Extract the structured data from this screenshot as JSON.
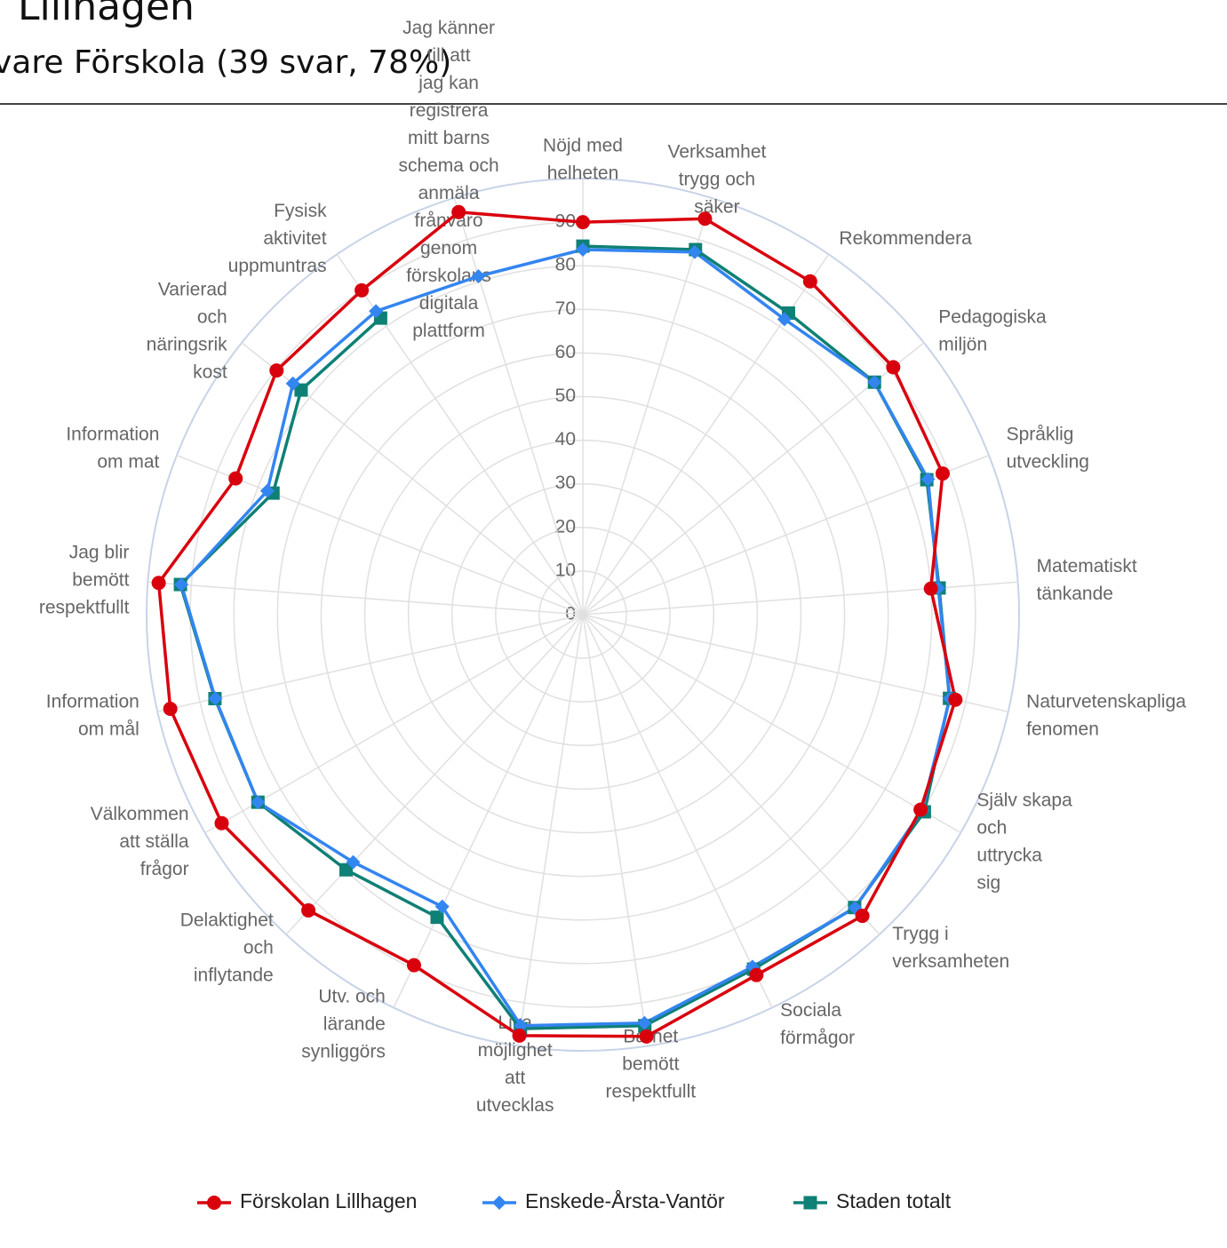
{
  "chart_data": {
    "type": "radar",
    "title": "Lillhagen",
    "subtitle": "vare Förskola  (39 svar, 78%)",
    "categories": [
      "Nöjd med helheten",
      "Verksamhet trygg och säker",
      "Rekommendera",
      "Pedagogiska miljön",
      "Språklig utveckling",
      "Matematiskt tänkande",
      "Naturvetenskapliga fenomen",
      "Själv skapa och uttrycka sig",
      "Trygg i verksamheten",
      "Sociala förmågor",
      "Barnet bemött respektfullt",
      "Lika möjlighet att utvecklas",
      "Utv. och lärande synliggörs",
      "Delaktighet och inflytande",
      "Välkommen att ställa frågor",
      "Information om mål",
      "Jag blir bemött respektfullt",
      "Information om mat",
      "Varierad och näringsrik kost",
      "Fysisk aktivitet uppmuntras",
      "Jag känner till att jag kan registrera mitt barns schema och anmäla frånvaro genom förskolans digitala plattform"
    ],
    "series": [
      {
        "name": "Förskolan Lillhagen",
        "color": "#d9000d",
        "marker": "circle",
        "values": [
          90,
          95,
          92.5,
          91,
          88.6,
          80,
          87.6,
          89.4,
          94.2,
          91.7,
          97.8,
          97.6,
          89.2,
          92.5,
          95.6,
          97,
          97.5,
          85.5,
          89.8,
          90,
          96.6
        ]
      },
      {
        "name": "Enskede-Årsta-Vantör",
        "color": "#3385f0",
        "marker": "diamond",
        "values": [
          83.7,
          87,
          82,
          85.5,
          85,
          81.7,
          86.3,
          89.8,
          91.7,
          89.6,
          94.7,
          95.3,
          74.3,
          77.4,
          86,
          86.4,
          92.3,
          77.7,
          85,
          84.2,
          81.2
        ]
      },
      {
        "name": "Staden totalt",
        "color": "#0f8075",
        "marker": "square",
        "values": [
          84.5,
          87.6,
          83.7,
          85.5,
          84.7,
          81.9,
          86.2,
          90.4,
          91.6,
          90.2,
          95.3,
          96,
          77,
          79.8,
          86,
          86.5,
          92.5,
          76.3,
          82.6,
          82.3,
          null
        ]
      }
    ],
    "ylim": [
      0,
      100
    ],
    "yticks": [
      0,
      10,
      20,
      30,
      40,
      50,
      60,
      70,
      80,
      90
    ],
    "grid": true,
    "legend": "bottom"
  }
}
